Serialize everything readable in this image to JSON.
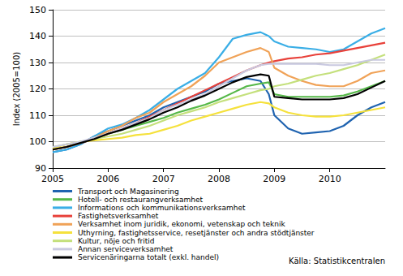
{
  "chart_data": {
    "type": "line",
    "ylabel": "Index (2005=100)",
    "annotations": [
      "Källa: Statistikcentralen"
    ],
    "x": [
      2005,
      2005.25,
      2005.5,
      2005.75,
      2006,
      2006.25,
      2006.5,
      2006.75,
      2007,
      2007.25,
      2007.5,
      2007.75,
      2008,
      2008.25,
      2008.5,
      2008.75,
      2008.9,
      2009,
      2009.25,
      2009.5,
      2009.75,
      2010,
      2010.25,
      2010.5,
      2010.75,
      2011
    ],
    "xlim": [
      2005,
      2011
    ],
    "xticks": [
      2005,
      2006,
      2007,
      2008,
      2009,
      2010
    ],
    "ylim": [
      90,
      150
    ],
    "yticks": [
      90,
      100,
      110,
      120,
      130,
      140,
      150
    ],
    "grid": true,
    "legend": "bottom",
    "series": [
      {
        "name": "Transport och Magasinering",
        "color": "#1f63b0",
        "values": [
          96,
          97,
          99,
          102,
          104,
          106,
          108,
          110,
          113,
          115,
          117,
          119,
          122,
          123,
          124,
          123,
          118,
          110,
          105,
          103,
          103.5,
          104,
          106,
          110,
          113,
          115
        ]
      },
      {
        "name": "Hotell- och restaurangverksamhet",
        "color": "#55b848",
        "values": [
          97,
          98,
          99.5,
          101,
          103,
          104.5,
          106,
          107.5,
          109,
          111,
          112.5,
          114,
          116,
          118.5,
          121,
          122,
          122.5,
          118,
          117,
          117,
          117,
          117,
          117.5,
          119,
          121,
          123
        ]
      },
      {
        "name": "Informations och kommunikationsverksamhet",
        "color": "#3aaee6",
        "values": [
          96,
          97,
          99,
          102,
          105,
          106.5,
          109,
          112,
          116,
          120,
          123,
          126,
          132,
          139,
          140.5,
          141.5,
          140,
          138,
          136,
          135.5,
          135,
          134,
          135,
          138,
          141,
          143
        ]
      },
      {
        "name": "Fastighetsverksamhet",
        "color": "#e8413a",
        "values": [
          97,
          98,
          99.5,
          101,
          103,
          105,
          107,
          109.5,
          112,
          114.5,
          117,
          119.5,
          122,
          124.5,
          127,
          129,
          130,
          130.5,
          131.5,
          132,
          133,
          133.5,
          134.5,
          135.5,
          136.5,
          137.5
        ]
      },
      {
        "name": "Verksamhet inom juridik, ekonomi, vetenskap och teknik",
        "color": "#f0a257",
        "values": [
          97,
          98,
          99.5,
          101.5,
          104,
          106,
          109,
          111,
          115,
          118,
          121,
          125,
          130,
          132,
          134,
          135.5,
          134,
          128,
          125,
          123,
          121.5,
          121,
          121,
          123,
          126,
          127
        ]
      },
      {
        "name": "Uthyrning, fastighetsservice, resetjänster och andra stödtjänster",
        "color": "#f5e13c",
        "values": [
          97.5,
          99,
          100,
          100.5,
          101,
          101.5,
          102.5,
          103,
          104.5,
          106,
          108,
          109.5,
          111,
          112.5,
          114,
          115,
          114.5,
          113,
          111,
          110,
          109.5,
          109.5,
          110,
          111,
          112,
          113
        ]
      },
      {
        "name": "Kultur, nöje och fritid",
        "color": "#c4e07c",
        "values": [
          98,
          99,
          100,
          101,
          102,
          103,
          104.5,
          106,
          108,
          110,
          111.5,
          113,
          115,
          116.5,
          118,
          119.5,
          120,
          121,
          122,
          123.5,
          125,
          126,
          127.5,
          129,
          131,
          133
        ]
      },
      {
        "name": "Annan serviceverksamhet",
        "color": "#c9c9e0",
        "values": [
          98,
          99,
          100,
          101.5,
          103,
          105,
          107,
          109,
          112,
          114,
          116,
          118,
          121,
          124,
          127,
          129,
          129.5,
          129.5,
          129.5,
          129.5,
          129.5,
          129,
          129,
          130,
          131,
          131
        ]
      },
      {
        "name": "Servicenäringarna totalt (exkl. handel)",
        "color": "#000000",
        "values": [
          97,
          98,
          99.5,
          101,
          103,
          104.5,
          106.5,
          108.5,
          111,
          113,
          115.5,
          117.5,
          120,
          122.5,
          124.5,
          125.5,
          125,
          117,
          116.5,
          116,
          116,
          116,
          116.5,
          118,
          120.5,
          123
        ]
      }
    ]
  }
}
